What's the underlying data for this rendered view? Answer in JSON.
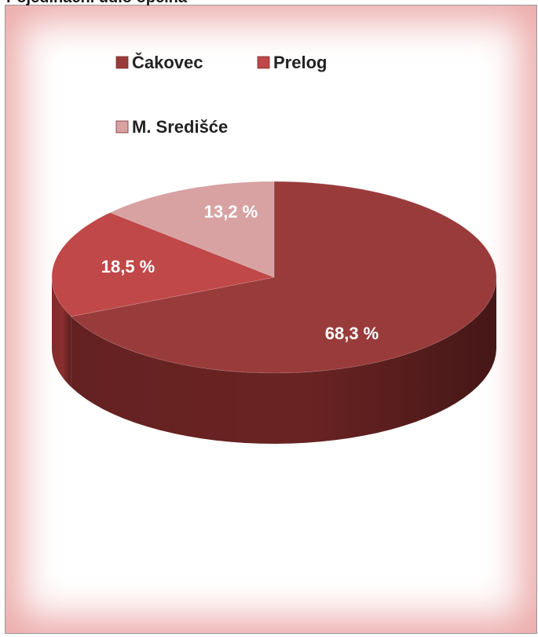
{
  "header": {
    "fragment_text": "Pojedinačni udio općina"
  },
  "chart_data": {
    "type": "pie",
    "title": "",
    "categories": [
      "Čakovec",
      "Prelog",
      "M. Središće"
    ],
    "values": [
      68.3,
      18.5,
      13.2
    ],
    "data_labels": [
      "68,3 %",
      "18,5 %",
      "13,2 %"
    ],
    "colors": [
      "#9a3b3b",
      "#c04848",
      "#d8a2a2"
    ],
    "side_colors": [
      "#6a2323",
      "#8a2e2e",
      "#a87474"
    ],
    "legend": {
      "placement": "top",
      "entries": [
        {
          "label": "Čakovec",
          "color": "#9a3b3b"
        },
        {
          "label": "Prelog",
          "color": "#c04848"
        },
        {
          "label": "M. Središće",
          "color": "#d8a2a2"
        }
      ]
    },
    "three_d": true
  }
}
